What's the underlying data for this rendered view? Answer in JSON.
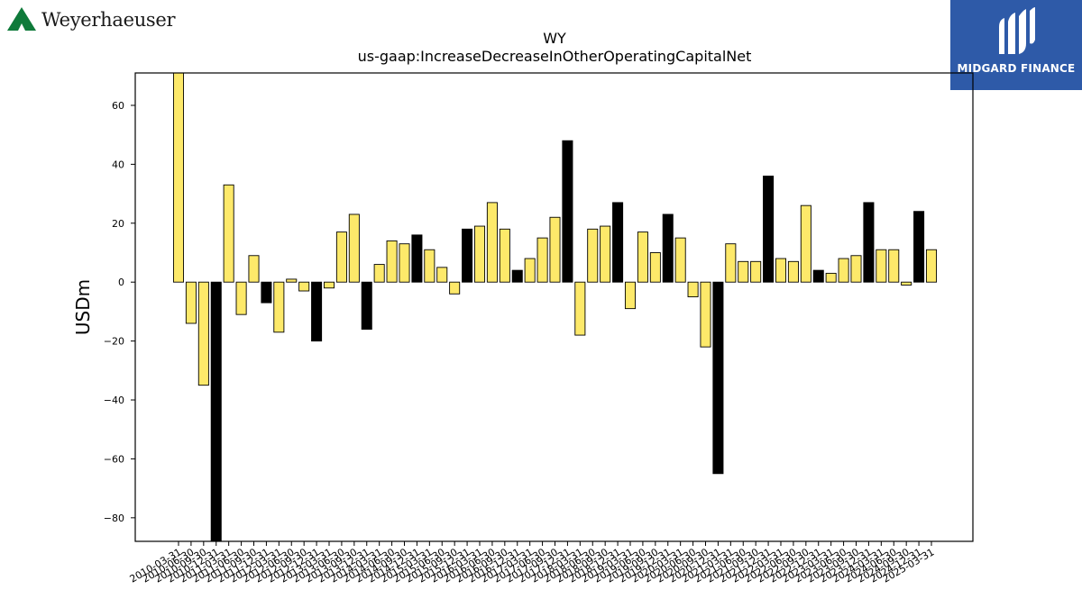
{
  "header": {
    "company_wordmark": "Weyerhaeuser",
    "brand_right": "MIDGARD FINANCE"
  },
  "colors": {
    "bar_positive_default": "#fde96a",
    "bar_highlight": "#000000",
    "logo_green": "#0f7a3a",
    "logo_blue": "#2e5aa8"
  },
  "chart_data": {
    "type": "bar",
    "title": "WY",
    "subtitle": "us-gaap:IncreaseDecreaseInOtherOperatingCapitalNet",
    "xlabel": "",
    "ylabel": "USDm",
    "ylim": [
      -88,
      71
    ],
    "yticks": [
      -80,
      -60,
      -40,
      -20,
      0,
      20,
      40,
      60
    ],
    "grid": false,
    "legend": "none",
    "categories": [
      "2010-03-31",
      "2010-06-30",
      "2010-09-30",
      "2010-12-31",
      "2011-03-31",
      "2011-06-30",
      "2011-09-30",
      "2011-12-31",
      "2012-03-31",
      "2012-06-30",
      "2012-09-30",
      "2012-12-31",
      "2013-03-31",
      "2013-06-30",
      "2013-09-30",
      "2013-12-31",
      "2014-03-31",
      "2014-06-30",
      "2014-09-30",
      "2014-12-31",
      "2015-03-31",
      "2015-06-30",
      "2015-09-30",
      "2015-12-31",
      "2016-03-31",
      "2016-06-30",
      "2016-09-30",
      "2016-12-31",
      "2017-03-31",
      "2017-06-30",
      "2017-09-30",
      "2017-12-31",
      "2018-03-31",
      "2018-06-30",
      "2018-09-30",
      "2018-12-31",
      "2019-03-31",
      "2019-06-30",
      "2019-09-30",
      "2019-12-31",
      "2020-03-31",
      "2020-06-30",
      "2020-09-30",
      "2020-12-31",
      "2021-03-31",
      "2021-06-30",
      "2021-09-30",
      "2021-12-31",
      "2022-03-31",
      "2022-06-30",
      "2022-09-30",
      "2022-12-31",
      "2023-03-31",
      "2023-06-30",
      "2023-09-30",
      "2023-12-31",
      "2024-03-31",
      "2024-06-30",
      "2024-09-30",
      "2024-12-31",
      "2025-03-31"
    ],
    "tick_labels_shown": [
      "2010-03-31",
      "2010-06-30",
      "2010-09-30",
      "2010-12-31",
      "2011-03-31",
      "2011-06-30",
      "2011-09-30",
      "2011-12-31",
      "2012-03-31",
      "2012-06-30",
      "2012-09-30",
      "2012-12-31",
      "2013-03-31",
      "2013-06-30",
      "2013-09-30",
      "2013-12-31",
      "2014-03-31",
      "2014-06-30",
      "2014-09-30",
      "2014-12-31",
      "2015-03-31",
      "2015-06-30",
      "2015-09-30",
      "2015-12-31",
      "2016-03-31",
      "2016-06-30",
      "2016-09-30",
      "2016-12-31",
      "2017-03-31",
      "2017-06-30",
      "2017-09-30",
      "2017-12-31",
      "2018-03-31",
      "2018-06-30",
      "2018-09-30",
      "2018-12-31",
      "2019-03-31",
      "2019-06-30",
      "2019-09-30",
      "2019-12-31",
      "2020-03-31",
      "2020-06-30",
      "2020-09-30",
      "2020-12-31",
      "2021-03-31",
      "2021-06-30",
      "2021-09-30",
      "2021-12-31",
      "2022-03-31",
      "2022-06-30",
      "2022-09-30",
      "2022-12-31",
      "2023-03-31",
      "2023-06-30",
      "2023-09-30",
      "2023-12-31",
      "2024-03-31",
      "2024-06-30",
      "2024-09-30",
      "2024-12-31",
      "2025-03-31"
    ],
    "values": [
      72,
      -14,
      -35,
      -90,
      33,
      -11,
      9,
      -7,
      -17,
      1,
      -3,
      -20,
      -2,
      17,
      23,
      -16,
      6,
      14,
      13,
      16,
      11,
      5,
      -4,
      18,
      19,
      27,
      18,
      4,
      8,
      15,
      22,
      48,
      -18,
      18,
      19,
      27,
      -9,
      17,
      10,
      23,
      15,
      -5,
      -22,
      -65,
      13,
      7,
      7,
      36,
      8,
      7,
      26,
      4,
      3,
      8,
      9,
      27,
      11,
      11,
      -1,
      24,
      11
    ],
    "highlight": [
      false,
      false,
      false,
      true,
      false,
      false,
      false,
      true,
      false,
      false,
      false,
      true,
      false,
      false,
      false,
      true,
      false,
      false,
      false,
      true,
      false,
      false,
      false,
      true,
      false,
      false,
      false,
      true,
      false,
      false,
      false,
      true,
      false,
      false,
      false,
      true,
      false,
      false,
      false,
      true,
      false,
      false,
      false,
      true,
      false,
      false,
      false,
      true,
      false,
      false,
      false,
      true,
      false,
      false,
      false,
      true,
      false,
      false,
      false,
      true,
      false
    ]
  }
}
